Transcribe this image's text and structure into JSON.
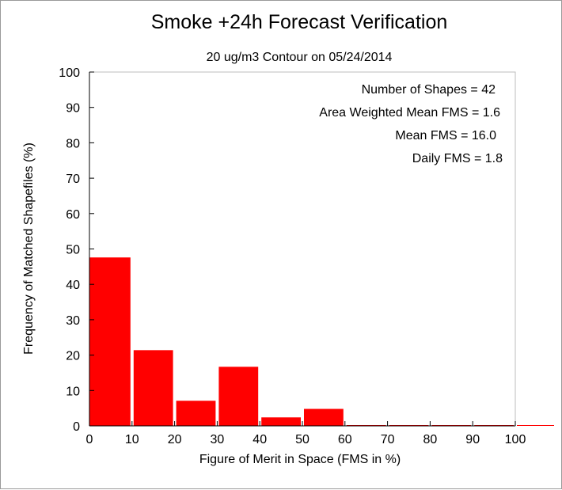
{
  "chart_data": {
    "type": "bar",
    "title": "Smoke +24h Forecast Verification",
    "subtitle": "20 ug/m3 Contour on 05/24/2014",
    "xlabel": "Figure of Merit in Space (FMS in %)",
    "ylabel": "Frequency of Matched Shapefiles (%)",
    "xlim": [
      0,
      100
    ],
    "ylim": [
      0,
      100
    ],
    "xticks": [
      0,
      10,
      20,
      30,
      40,
      50,
      60,
      70,
      80,
      90,
      100
    ],
    "yticks": [
      0,
      10,
      20,
      30,
      40,
      50,
      60,
      70,
      80,
      90,
      100
    ],
    "grid": false,
    "bins": [
      {
        "start": 0,
        "end": 10,
        "value": 47.6
      },
      {
        "start": 10,
        "end": 20,
        "value": 21.4
      },
      {
        "start": 20,
        "end": 30,
        "value": 7.1
      },
      {
        "start": 30,
        "end": 40,
        "value": 16.7
      },
      {
        "start": 40,
        "end": 50,
        "value": 2.4
      },
      {
        "start": 50,
        "end": 60,
        "value": 4.8
      },
      {
        "start": 60,
        "end": 70,
        "value": 0
      },
      {
        "start": 70,
        "end": 80,
        "value": 0
      },
      {
        "start": 80,
        "end": 90,
        "value": 0
      },
      {
        "start": 90,
        "end": 100,
        "value": 0
      },
      {
        "start": 100,
        "end": 110,
        "value": 0
      }
    ],
    "annotations": [
      "Number of Shapes = 42",
      "Area Weighted Mean FMS = 1.6",
      "Mean FMS = 16.0",
      "Daily FMS = 1.8"
    ],
    "bar_color": "#ff0000"
  }
}
